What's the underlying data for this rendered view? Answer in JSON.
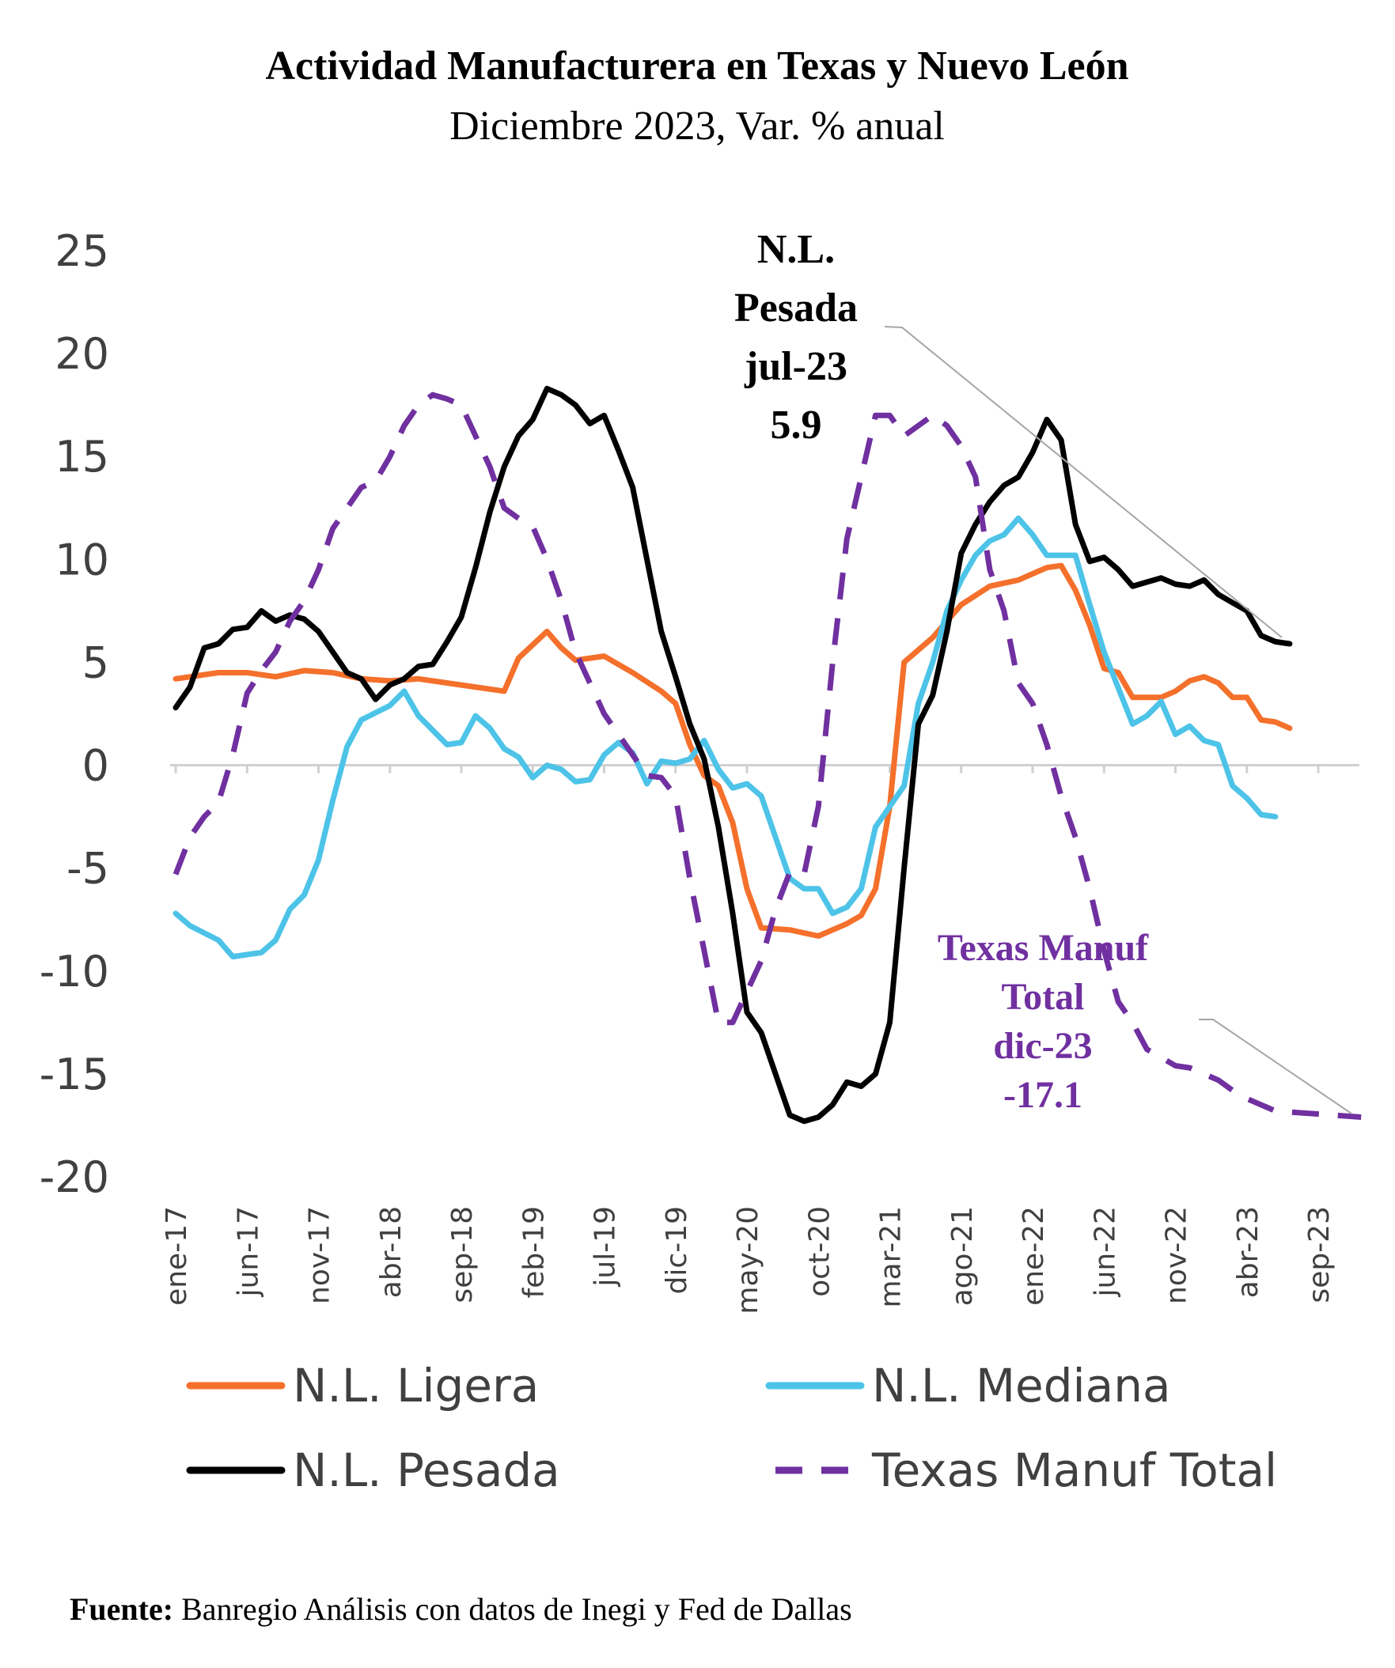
{
  "chart_data": {
    "type": "line",
    "title": "Actividad Manufacturera en Texas y Nuevo León",
    "subtitle": "Diciembre 2023, Var. % anual",
    "ylim": [
      -20,
      25
    ],
    "yticks": [
      25,
      20,
      15,
      10,
      5,
      0,
      -5,
      -10,
      -15,
      -20
    ],
    "x_start": "ene-17",
    "x_end": "dic-23",
    "xtick_labels": [
      "ene-17",
      "jun-17",
      "nov-17",
      "abr-18",
      "sep-18",
      "feb-19",
      "jul-19",
      "dic-19",
      "may-20",
      "oct-20",
      "mar-21",
      "ago-21",
      "ene-22",
      "jun-22",
      "nov-22",
      "abr-23",
      "sep-23"
    ],
    "legend_position": "bottom",
    "grid": false,
    "series": [
      {
        "name": "N.L. Ligera",
        "color": "#f4702b",
        "dash": "solid",
        "points": [
          [
            "ene-17",
            4.2
          ],
          [
            "abr-17",
            4.5
          ],
          [
            "jun-17",
            4.5
          ],
          [
            "ago-17",
            4.3
          ],
          [
            "oct-17",
            4.6
          ],
          [
            "dic-17",
            4.5
          ],
          [
            "feb-18",
            4.2
          ],
          [
            "abr-18",
            4.1
          ],
          [
            "jun-18",
            4.2
          ],
          [
            "sep-18",
            3.9
          ],
          [
            "dic-18",
            3.6
          ],
          [
            "ene-19",
            5.2
          ],
          [
            "mar-19",
            6.5
          ],
          [
            "abr-19",
            5.7
          ],
          [
            "may-19",
            5.1
          ],
          [
            "jul-19",
            5.3
          ],
          [
            "sep-19",
            4.5
          ],
          [
            "nov-19",
            3.6
          ],
          [
            "dic-19",
            3.0
          ],
          [
            "ene-20",
            1.0
          ],
          [
            "feb-20",
            -0.5
          ],
          [
            "mar-20",
            -1.0
          ],
          [
            "abr-20",
            -2.8
          ],
          [
            "may-20",
            -6.0
          ],
          [
            "jun-20",
            -7.9
          ],
          [
            "ago-20",
            -8.0
          ],
          [
            "oct-20",
            -8.3
          ],
          [
            "dic-20",
            -7.7
          ],
          [
            "ene-21",
            -7.3
          ],
          [
            "feb-21",
            -6.0
          ],
          [
            "mar-21",
            -2.0
          ],
          [
            "abr-21",
            5.0
          ],
          [
            "jun-21",
            6.2
          ],
          [
            "ago-21",
            7.8
          ],
          [
            "oct-21",
            8.7
          ],
          [
            "dic-21",
            9.0
          ],
          [
            "ene-22",
            9.3
          ],
          [
            "feb-22",
            9.6
          ],
          [
            "mar-22",
            9.7
          ],
          [
            "abr-22",
            8.5
          ],
          [
            "may-22",
            6.8
          ],
          [
            "jun-22",
            4.7
          ],
          [
            "jul-22",
            4.5
          ],
          [
            "ago-22",
            3.3
          ],
          [
            "oct-22",
            3.3
          ],
          [
            "nov-22",
            3.6
          ],
          [
            "dic-22",
            4.1
          ],
          [
            "ene-23",
            4.3
          ],
          [
            "feb-23",
            4.0
          ],
          [
            "mar-23",
            3.3
          ],
          [
            "abr-23",
            3.3
          ],
          [
            "may-23",
            2.2
          ],
          [
            "jun-23",
            2.1
          ],
          [
            "jul-23",
            1.8
          ]
        ]
      },
      {
        "name": "N.L. Mediana",
        "color": "#4dc3e8",
        "dash": "solid",
        "points": [
          [
            "ene-17",
            -7.2
          ],
          [
            "feb-17",
            -7.8
          ],
          [
            "abr-17",
            -8.5
          ],
          [
            "may-17",
            -9.3
          ],
          [
            "jul-17",
            -9.1
          ],
          [
            "ago-17",
            -8.5
          ],
          [
            "sep-17",
            -7.0
          ],
          [
            "oct-17",
            -6.3
          ],
          [
            "nov-17",
            -4.6
          ],
          [
            "dic-17",
            -1.7
          ],
          [
            "ene-18",
            0.9
          ],
          [
            "feb-18",
            2.2
          ],
          [
            "abr-18",
            2.9
          ],
          [
            "may-18",
            3.6
          ],
          [
            "jun-18",
            2.4
          ],
          [
            "ago-18",
            1.0
          ],
          [
            "sep-18",
            1.1
          ],
          [
            "oct-18",
            2.4
          ],
          [
            "nov-18",
            1.8
          ],
          [
            "dic-18",
            0.8
          ],
          [
            "ene-19",
            0.4
          ],
          [
            "feb-19",
            -0.6
          ],
          [
            "mar-19",
            0.0
          ],
          [
            "abr-19",
            -0.2
          ],
          [
            "may-19",
            -0.8
          ],
          [
            "jun-19",
            -0.7
          ],
          [
            "jul-19",
            0.5
          ],
          [
            "ago-19",
            1.1
          ],
          [
            "sep-19",
            0.6
          ],
          [
            "oct-19",
            -0.9
          ],
          [
            "nov-19",
            0.2
          ],
          [
            "dic-19",
            0.1
          ],
          [
            "ene-20",
            0.3
          ],
          [
            "feb-20",
            1.2
          ],
          [
            "mar-20",
            -0.2
          ],
          [
            "abr-20",
            -1.1
          ],
          [
            "may-20",
            -0.9
          ],
          [
            "jun-20",
            -1.5
          ],
          [
            "jul-20",
            -3.5
          ],
          [
            "ago-20",
            -5.5
          ],
          [
            "sep-20",
            -6.0
          ],
          [
            "oct-20",
            -6.0
          ],
          [
            "nov-20",
            -7.2
          ],
          [
            "dic-20",
            -6.9
          ],
          [
            "ene-21",
            -6.0
          ],
          [
            "feb-21",
            -3.0
          ],
          [
            "mar-21",
            -2.0
          ],
          [
            "abr-21",
            -1.0
          ],
          [
            "may-21",
            3.0
          ],
          [
            "jun-21",
            5.0
          ],
          [
            "jul-21",
            7.5
          ],
          [
            "ago-21",
            9.0
          ],
          [
            "sep-21",
            10.2
          ],
          [
            "oct-21",
            10.9
          ],
          [
            "nov-21",
            11.2
          ],
          [
            "dic-21",
            12.0
          ],
          [
            "ene-22",
            11.2
          ],
          [
            "feb-22",
            10.2
          ],
          [
            "mar-22",
            10.2
          ],
          [
            "abr-22",
            10.2
          ],
          [
            "may-22",
            7.8
          ],
          [
            "jun-22",
            5.5
          ],
          [
            "ago-22",
            2.0
          ],
          [
            "sep-22",
            2.4
          ],
          [
            "oct-22",
            3.1
          ],
          [
            "nov-22",
            1.5
          ],
          [
            "dic-22",
            1.9
          ],
          [
            "ene-23",
            1.2
          ],
          [
            "feb-23",
            1.0
          ],
          [
            "mar-23",
            -1.0
          ],
          [
            "abr-23",
            -1.6
          ],
          [
            "may-23",
            -2.4
          ],
          [
            "jun-23",
            -2.5
          ]
        ]
      },
      {
        "name": "N.L. Pesada",
        "color": "#000000",
        "dash": "solid",
        "points": [
          [
            "ene-17",
            2.8
          ],
          [
            "feb-17",
            3.8
          ],
          [
            "mar-17",
            5.7
          ],
          [
            "abr-17",
            5.9
          ],
          [
            "may-17",
            6.6
          ],
          [
            "jun-17",
            6.7
          ],
          [
            "jul-17",
            7.5
          ],
          [
            "ago-17",
            7.0
          ],
          [
            "sep-17",
            7.3
          ],
          [
            "oct-17",
            7.1
          ],
          [
            "nov-17",
            6.5
          ],
          [
            "dic-17",
            5.5
          ],
          [
            "ene-18",
            4.5
          ],
          [
            "feb-18",
            4.2
          ],
          [
            "mar-18",
            3.2
          ],
          [
            "abr-18",
            3.9
          ],
          [
            "may-18",
            4.2
          ],
          [
            "jun-18",
            4.8
          ],
          [
            "jul-18",
            4.9
          ],
          [
            "ago-18",
            6.0
          ],
          [
            "sep-18",
            7.2
          ],
          [
            "oct-18",
            9.6
          ],
          [
            "nov-18",
            12.3
          ],
          [
            "dic-18",
            14.5
          ],
          [
            "ene-19",
            16.0
          ],
          [
            "feb-19",
            16.8
          ],
          [
            "mar-19",
            18.3
          ],
          [
            "abr-19",
            18.0
          ],
          [
            "may-19",
            17.5
          ],
          [
            "jun-19",
            16.6
          ],
          [
            "jul-19",
            17.0
          ],
          [
            "ago-19",
            15.3
          ],
          [
            "sep-19",
            13.5
          ],
          [
            "oct-19",
            10.0
          ],
          [
            "nov-19",
            6.5
          ],
          [
            "dic-19",
            4.3
          ],
          [
            "ene-20",
            2.0
          ],
          [
            "feb-20",
            0.3
          ],
          [
            "mar-20",
            -3.0
          ],
          [
            "abr-20",
            -7.2
          ],
          [
            "may-20",
            -12.0
          ],
          [
            "jun-20",
            -13.0
          ],
          [
            "jul-20",
            -15.0
          ],
          [
            "ago-20",
            -17.0
          ],
          [
            "sep-20",
            -17.3
          ],
          [
            "oct-20",
            -17.1
          ],
          [
            "nov-20",
            -16.5
          ],
          [
            "dic-20",
            -15.4
          ],
          [
            "ene-21",
            -15.6
          ],
          [
            "feb-21",
            -15.0
          ],
          [
            "mar-21",
            -12.5
          ],
          [
            "abr-21",
            -5.0
          ],
          [
            "may-21",
            2.0
          ],
          [
            "jun-21",
            3.4
          ],
          [
            "jul-21",
            6.5
          ],
          [
            "ago-21",
            10.3
          ],
          [
            "sep-21",
            11.7
          ],
          [
            "oct-21",
            12.8
          ],
          [
            "nov-21",
            13.6
          ],
          [
            "dic-21",
            14.0
          ],
          [
            "ene-22",
            15.2
          ],
          [
            "feb-22",
            16.8
          ],
          [
            "mar-22",
            15.8
          ],
          [
            "abr-22",
            11.7
          ],
          [
            "may-22",
            9.9
          ],
          [
            "jun-22",
            10.1
          ],
          [
            "jul-22",
            9.5
          ],
          [
            "ago-22",
            8.7
          ],
          [
            "sep-22",
            8.9
          ],
          [
            "oct-22",
            9.1
          ],
          [
            "nov-22",
            8.8
          ],
          [
            "dic-22",
            8.7
          ],
          [
            "ene-23",
            9.0
          ],
          [
            "feb-23",
            8.3
          ],
          [
            "mar-23",
            7.9
          ],
          [
            "abr-23",
            7.5
          ],
          [
            "may-23",
            6.3
          ],
          [
            "jun-23",
            6.0
          ],
          [
            "jul-23",
            5.9
          ]
        ]
      },
      {
        "name": "Texas Manuf Total",
        "color": "#7030a0",
        "dash": "dashed",
        "points": [
          [
            "ene-17",
            -5.3
          ],
          [
            "feb-17",
            -3.5
          ],
          [
            "mar-17",
            -2.5
          ],
          [
            "abr-17",
            -1.8
          ],
          [
            "may-17",
            0.5
          ],
          [
            "jun-17",
            3.5
          ],
          [
            "jul-17",
            4.6
          ],
          [
            "ago-17",
            5.5
          ],
          [
            "sep-17",
            7.0
          ],
          [
            "oct-17",
            8.0
          ],
          [
            "nov-17",
            9.5
          ],
          [
            "dic-17",
            11.5
          ],
          [
            "ene-18",
            12.5
          ],
          [
            "feb-18",
            13.5
          ],
          [
            "mar-18",
            13.8
          ],
          [
            "abr-18",
            15.0
          ],
          [
            "may-18",
            16.5
          ],
          [
            "jun-18",
            17.5
          ],
          [
            "jul-18",
            18.0
          ],
          [
            "ago-18",
            17.8
          ],
          [
            "sep-18",
            17.5
          ],
          [
            "oct-18",
            16.0
          ],
          [
            "nov-18",
            14.5
          ],
          [
            "dic-18",
            12.5
          ],
          [
            "ene-19",
            12.0
          ],
          [
            "feb-19",
            11.6
          ],
          [
            "mar-19",
            10.0
          ],
          [
            "abr-19",
            8.0
          ],
          [
            "may-19",
            5.5
          ],
          [
            "jun-19",
            4.0
          ],
          [
            "jul-19",
            2.5
          ],
          [
            "ago-19",
            1.5
          ],
          [
            "sep-19",
            0.5
          ],
          [
            "oct-19",
            -0.5
          ],
          [
            "nov-19",
            -0.6
          ],
          [
            "dic-19",
            -1.5
          ],
          [
            "ene-20",
            -5.5
          ],
          [
            "feb-20",
            -9.0
          ],
          [
            "mar-20",
            -12.5
          ],
          [
            "abr-20",
            -12.5
          ],
          [
            "may-20",
            -11.0
          ],
          [
            "jun-20",
            -9.5
          ],
          [
            "jul-20",
            -7.0
          ],
          [
            "ago-20",
            -5.2
          ],
          [
            "sep-20",
            -5.3
          ],
          [
            "oct-20",
            -2.0
          ],
          [
            "nov-20",
            5.0
          ],
          [
            "dic-20",
            11.0
          ],
          [
            "ene-21",
            14.0
          ],
          [
            "feb-21",
            17.0
          ],
          [
            "mar-21",
            17.0
          ],
          [
            "abr-21",
            16.0
          ],
          [
            "may-21",
            16.5
          ],
          [
            "jun-21",
            17.0
          ],
          [
            "jul-21",
            16.5
          ],
          [
            "ago-21",
            15.5
          ],
          [
            "sep-21",
            14.0
          ],
          [
            "oct-21",
            9.5
          ],
          [
            "nov-21",
            7.5
          ],
          [
            "dic-21",
            4.0
          ],
          [
            "ene-22",
            3.0
          ],
          [
            "feb-22",
            1.0
          ],
          [
            "mar-22",
            -1.5
          ],
          [
            "abr-22",
            -3.5
          ],
          [
            "may-22",
            -6.0
          ],
          [
            "jun-22",
            -9.0
          ],
          [
            "jul-22",
            -11.5
          ],
          [
            "ago-22",
            -12.5
          ],
          [
            "sep-22",
            -13.8
          ],
          [
            "oct-22",
            -14.2
          ],
          [
            "nov-22",
            -14.6
          ],
          [
            "dic-22",
            -14.7
          ],
          [
            "ene-23",
            -15.0
          ],
          [
            "feb-23",
            -15.3
          ],
          [
            "mar-23",
            -15.8
          ],
          [
            "abr-23",
            -16.2
          ],
          [
            "may-23",
            -16.5
          ],
          [
            "jun-23",
            -16.8
          ],
          [
            "dic-23",
            -17.1
          ]
        ]
      }
    ],
    "annotations": [
      {
        "lines": [
          "N.L.",
          "Pesada",
          "jul-23",
          "5.9"
        ],
        "series": "N.L. Pesada",
        "color": "#000000"
      },
      {
        "lines": [
          "Texas Manuf",
          "Total",
          "dic-23",
          "-17.1"
        ],
        "series": "Texas Manuf Total",
        "color": "#7030a0"
      }
    ]
  },
  "source": {
    "label": "Fuente:",
    "text": " Banregio Análisis con datos de Inegi y Fed de Dallas"
  }
}
